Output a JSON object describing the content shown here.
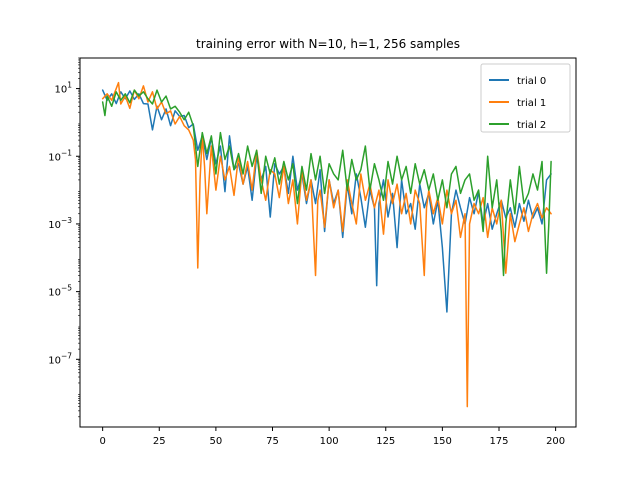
{
  "chart_data": {
    "type": "line",
    "title": "training error with N=10, h=1, 256 samples",
    "xlabel": "",
    "ylabel": "",
    "xlim": [
      -10,
      209
    ],
    "ylim": [
      1e-09,
      80
    ],
    "yscale": "log",
    "x_ticks": [
      0,
      25,
      50,
      75,
      100,
      125,
      150,
      175,
      200
    ],
    "x_tick_labels": [
      "0",
      "25",
      "50",
      "75",
      "100",
      "125",
      "150",
      "175",
      "200"
    ],
    "y_ticks": [
      1e-07,
      1e-05,
      0.001,
      0.1,
      10
    ],
    "y_tick_labels": [
      {
        "base": "10",
        "exp": "−7"
      },
      {
        "base": "10",
        "exp": "−5"
      },
      {
        "base": "10",
        "exp": "−3"
      },
      {
        "base": "10",
        "exp": "−1"
      },
      {
        "base": "10",
        "exp": "1"
      }
    ],
    "grid": false,
    "legend_position": "top-right",
    "series": [
      {
        "name": "trial 0",
        "color": "#1f77b4",
        "points": [
          [
            0,
            9
          ],
          [
            2,
            4.5
          ],
          [
            4,
            7
          ],
          [
            6,
            3.6
          ],
          [
            8,
            8
          ],
          [
            10,
            5
          ],
          [
            12,
            8.5
          ],
          [
            14,
            4.8
          ],
          [
            16,
            7
          ],
          [
            18,
            3.6
          ],
          [
            20,
            3.5
          ],
          [
            22,
            0.6
          ],
          [
            24,
            3
          ],
          [
            26,
            1.2
          ],
          [
            28,
            2.5
          ],
          [
            30,
            0.8
          ],
          [
            32,
            2.2
          ],
          [
            34,
            1.5
          ],
          [
            36,
            1.6
          ],
          [
            38,
            0.7
          ],
          [
            40,
            0.9
          ],
          [
            42,
            0.15
          ],
          [
            44,
            0.4
          ],
          [
            46,
            0.08
          ],
          [
            48,
            0.35
          ],
          [
            50,
            0.06
          ],
          [
            52,
            0.2
          ],
          [
            54,
            0.009
          ],
          [
            56,
            0.4
          ],
          [
            58,
            0.04
          ],
          [
            60,
            0.06
          ],
          [
            62,
            0.015
          ],
          [
            64,
            0.05
          ],
          [
            66,
            0.005
          ],
          [
            68,
            0.1
          ],
          [
            70,
            0.02
          ],
          [
            72,
            0.05
          ],
          [
            74,
            0.0016
          ],
          [
            76,
            0.06
          ],
          [
            78,
            0.03
          ],
          [
            80,
            0.05
          ],
          [
            82,
            0.008
          ],
          [
            84,
            0.1
          ],
          [
            86,
            0.01
          ],
          [
            88,
            0.03
          ],
          [
            90,
            0.004
          ],
          [
            92,
            0.02
          ],
          [
            94,
            0.004
          ],
          [
            96,
            0.04
          ],
          [
            98,
            0.0006
          ],
          [
            100,
            0.02
          ],
          [
            102,
            0.004
          ],
          [
            104,
            0.01
          ],
          [
            106,
            0.0004
          ],
          [
            108,
            0.015
          ],
          [
            110,
            0.002
          ],
          [
            112,
            0.03
          ],
          [
            114,
            0.006
          ],
          [
            116,
            0.0008
          ],
          [
            118,
            0.01
          ],
          [
            120,
            0.003
          ],
          [
            121,
            1.5e-05
          ],
          [
            122,
            0.004
          ],
          [
            124,
            0.02
          ],
          [
            126,
            0.0016
          ],
          [
            128,
            0.008
          ],
          [
            130,
            0.0002
          ],
          [
            132,
            0.02
          ],
          [
            134,
            0.002
          ],
          [
            136,
            0.004
          ],
          [
            138,
            0.0007
          ],
          [
            140,
            0.015
          ],
          [
            142,
            0.003
          ],
          [
            144,
            0.008
          ],
          [
            146,
            0.001
          ],
          [
            148,
            0.005
          ],
          [
            150,
            0.0002
          ],
          [
            152,
            2.5e-06
          ],
          [
            154,
            0.002
          ],
          [
            156,
            0.01
          ],
          [
            158,
            0.003
          ],
          [
            160,
            0.001
          ],
          [
            162,
            0.006
          ],
          [
            164,
            0.002
          ],
          [
            166,
            0.009
          ],
          [
            168,
            0.001
          ],
          [
            170,
            0.004
          ],
          [
            172,
            0.0007
          ],
          [
            174,
            0.002
          ],
          [
            176,
            0.005
          ],
          [
            178,
            0.0015
          ],
          [
            180,
            0.003
          ],
          [
            182,
            0.0008
          ],
          [
            184,
            0.004
          ],
          [
            186,
            0.0012
          ],
          [
            188,
            0.005
          ],
          [
            190,
            0.0015
          ],
          [
            192,
            0.003
          ],
          [
            194,
            0.001
          ],
          [
            196,
            0.02
          ],
          [
            198,
            0.03
          ]
        ]
      },
      {
        "name": "trial 1",
        "color": "#ff7f0e",
        "points": [
          [
            0,
            5
          ],
          [
            2,
            7
          ],
          [
            4,
            4.5
          ],
          [
            6,
            10
          ],
          [
            7,
            15
          ],
          [
            8,
            3.5
          ],
          [
            10,
            6
          ],
          [
            12,
            2.6
          ],
          [
            14,
            9
          ],
          [
            16,
            5
          ],
          [
            18,
            12
          ],
          [
            20,
            4
          ],
          [
            22,
            8
          ],
          [
            24,
            2.5
          ],
          [
            26,
            4
          ],
          [
            28,
            1.8
          ],
          [
            30,
            2.2
          ],
          [
            32,
            0.9
          ],
          [
            34,
            1.5
          ],
          [
            36,
            0.8
          ],
          [
            38,
            0.6
          ],
          [
            40,
            0.3
          ],
          [
            41,
            0.08
          ],
          [
            42,
            5e-05
          ],
          [
            43,
            0.02
          ],
          [
            44,
            0.4
          ],
          [
            45,
            0.05
          ],
          [
            46,
            0.002
          ],
          [
            48,
            0.2
          ],
          [
            50,
            0.01
          ],
          [
            52,
            0.1
          ],
          [
            54,
            0.02
          ],
          [
            56,
            0.05
          ],
          [
            58,
            0.007
          ],
          [
            60,
            0.1
          ],
          [
            62,
            0.015
          ],
          [
            64,
            0.07
          ],
          [
            66,
            0.01
          ],
          [
            68,
            0.15
          ],
          [
            70,
            0.02
          ],
          [
            72,
            0.005
          ],
          [
            74,
            0.04
          ],
          [
            76,
            0.03
          ],
          [
            78,
            0.006
          ],
          [
            80,
            0.05
          ],
          [
            82,
            0.004
          ],
          [
            84,
            0.02
          ],
          [
            86,
            0.001
          ],
          [
            88,
            0.04
          ],
          [
            90,
            0.005
          ],
          [
            92,
            0.02
          ],
          [
            94,
            3e-05
          ],
          [
            95,
            0.005
          ],
          [
            96,
            0.01
          ],
          [
            98,
            0.0008
          ],
          [
            100,
            0.02
          ],
          [
            102,
            0.003
          ],
          [
            104,
            0.01
          ],
          [
            106,
            0.0006
          ],
          [
            108,
            0.02
          ],
          [
            110,
            0.004
          ],
          [
            112,
            0.001
          ],
          [
            114,
            0.03
          ],
          [
            116,
            0.005
          ],
          [
            118,
            0.015
          ],
          [
            120,
            0.003
          ],
          [
            122,
            0.01
          ],
          [
            124,
            0.0005
          ],
          [
            126,
            0.02
          ],
          [
            128,
            0.004
          ],
          [
            130,
            0.015
          ],
          [
            132,
            0.002
          ],
          [
            134,
            0.008
          ],
          [
            136,
            0.001
          ],
          [
            138,
            0.01
          ],
          [
            140,
            0.004
          ],
          [
            142,
            3e-05
          ],
          [
            143,
            0.003
          ],
          [
            144,
            0.01
          ],
          [
            146,
            0.002
          ],
          [
            148,
            0.006
          ],
          [
            150,
            0.001
          ],
          [
            152,
            0.01
          ],
          [
            154,
            0.002
          ],
          [
            156,
            0.005
          ],
          [
            158,
            0.0004
          ],
          [
            160,
            0.002
          ],
          [
            161,
            4e-09
          ],
          [
            162,
            0.001
          ],
          [
            164,
            0.004
          ],
          [
            166,
            0.002
          ],
          [
            168,
            0.006
          ],
          [
            170,
            0.0004
          ],
          [
            172,
            0.003
          ],
          [
            174,
            0.001
          ],
          [
            176,
            0.005
          ],
          [
            178,
            3.5e-05
          ],
          [
            180,
            0.002
          ],
          [
            182,
            0.0003
          ],
          [
            184,
            0.001
          ],
          [
            186,
            0.003
          ],
          [
            188,
            0.0006
          ],
          [
            190,
            0.002
          ],
          [
            192,
            0.004
          ],
          [
            194,
            0.0015
          ],
          [
            196,
            0.003
          ],
          [
            198,
            0.002
          ]
        ]
      },
      {
        "name": "trial 2",
        "color": "#2ca02c",
        "points": [
          [
            0,
            4
          ],
          [
            1,
            1.6
          ],
          [
            2,
            6
          ],
          [
            4,
            3
          ],
          [
            6,
            8
          ],
          [
            8,
            4.5
          ],
          [
            10,
            7
          ],
          [
            12,
            3.8
          ],
          [
            14,
            9
          ],
          [
            16,
            6
          ],
          [
            18,
            8
          ],
          [
            20,
            5
          ],
          [
            22,
            3.5
          ],
          [
            24,
            9
          ],
          [
            26,
            4
          ],
          [
            28,
            6
          ],
          [
            30,
            2.5
          ],
          [
            32,
            3
          ],
          [
            34,
            2
          ],
          [
            36,
            1.2
          ],
          [
            38,
            2
          ],
          [
            40,
            0.8
          ],
          [
            42,
            0.05
          ],
          [
            44,
            0.5
          ],
          [
            46,
            0.12
          ],
          [
            48,
            0.4
          ],
          [
            50,
            0.03
          ],
          [
            52,
            0.5
          ],
          [
            54,
            0.08
          ],
          [
            56,
            0.2
          ],
          [
            58,
            0.04
          ],
          [
            60,
            0.12
          ],
          [
            62,
            0.03
          ],
          [
            64,
            0.2
          ],
          [
            66,
            0.05
          ],
          [
            68,
            0.15
          ],
          [
            70,
            0.008
          ],
          [
            72,
            0.1
          ],
          [
            74,
            0.03
          ],
          [
            76,
            0.09
          ],
          [
            78,
            0.015
          ],
          [
            80,
            0.07
          ],
          [
            82,
            0.02
          ],
          [
            84,
            0.06
          ],
          [
            86,
            0.004
          ],
          [
            88,
            0.05
          ],
          [
            90,
            0.01
          ],
          [
            92,
            0.12
          ],
          [
            94,
            0.02
          ],
          [
            96,
            0.1
          ],
          [
            98,
            0.008
          ],
          [
            100,
            0.06
          ],
          [
            102,
            0.03
          ],
          [
            104,
            0.02
          ],
          [
            106,
            0.15
          ],
          [
            108,
            0.01
          ],
          [
            110,
            0.08
          ],
          [
            112,
            0.02
          ],
          [
            114,
            0.04
          ],
          [
            116,
            0.2
          ],
          [
            118,
            0.01
          ],
          [
            120,
            0.06
          ],
          [
            122,
            0.02
          ],
          [
            124,
            0.005
          ],
          [
            126,
            0.07
          ],
          [
            128,
            0.015
          ],
          [
            130,
            0.1
          ],
          [
            132,
            0.02
          ],
          [
            134,
            0.05
          ],
          [
            136,
            0.008
          ],
          [
            138,
            0.06
          ],
          [
            140,
            0.015
          ],
          [
            142,
            0.04
          ],
          [
            144,
            0.01
          ],
          [
            146,
            0.03
          ],
          [
            148,
            0.005
          ],
          [
            150,
            0.02
          ],
          [
            152,
            0.003
          ],
          [
            154,
            0.03
          ],
          [
            156,
            0.05
          ],
          [
            158,
            0.008
          ],
          [
            160,
            0.02
          ],
          [
            162,
            0.03
          ],
          [
            164,
            0.005
          ],
          [
            166,
            0.01
          ],
          [
            168,
            0.0006
          ],
          [
            170,
            0.1
          ],
          [
            172,
            0.003
          ],
          [
            174,
            0.02
          ],
          [
            176,
            0.0006
          ],
          [
            177,
            3e-05
          ],
          [
            178,
            0.001
          ],
          [
            180,
            0.02
          ],
          [
            182,
            0.002
          ],
          [
            184,
            0.05
          ],
          [
            186,
            0.004
          ],
          [
            188,
            0.008
          ],
          [
            190,
            0.03
          ],
          [
            192,
            0.01
          ],
          [
            194,
            0.07
          ],
          [
            196,
            3.5e-05
          ],
          [
            197,
            0.001
          ],
          [
            198,
            0.07
          ]
        ]
      }
    ]
  }
}
